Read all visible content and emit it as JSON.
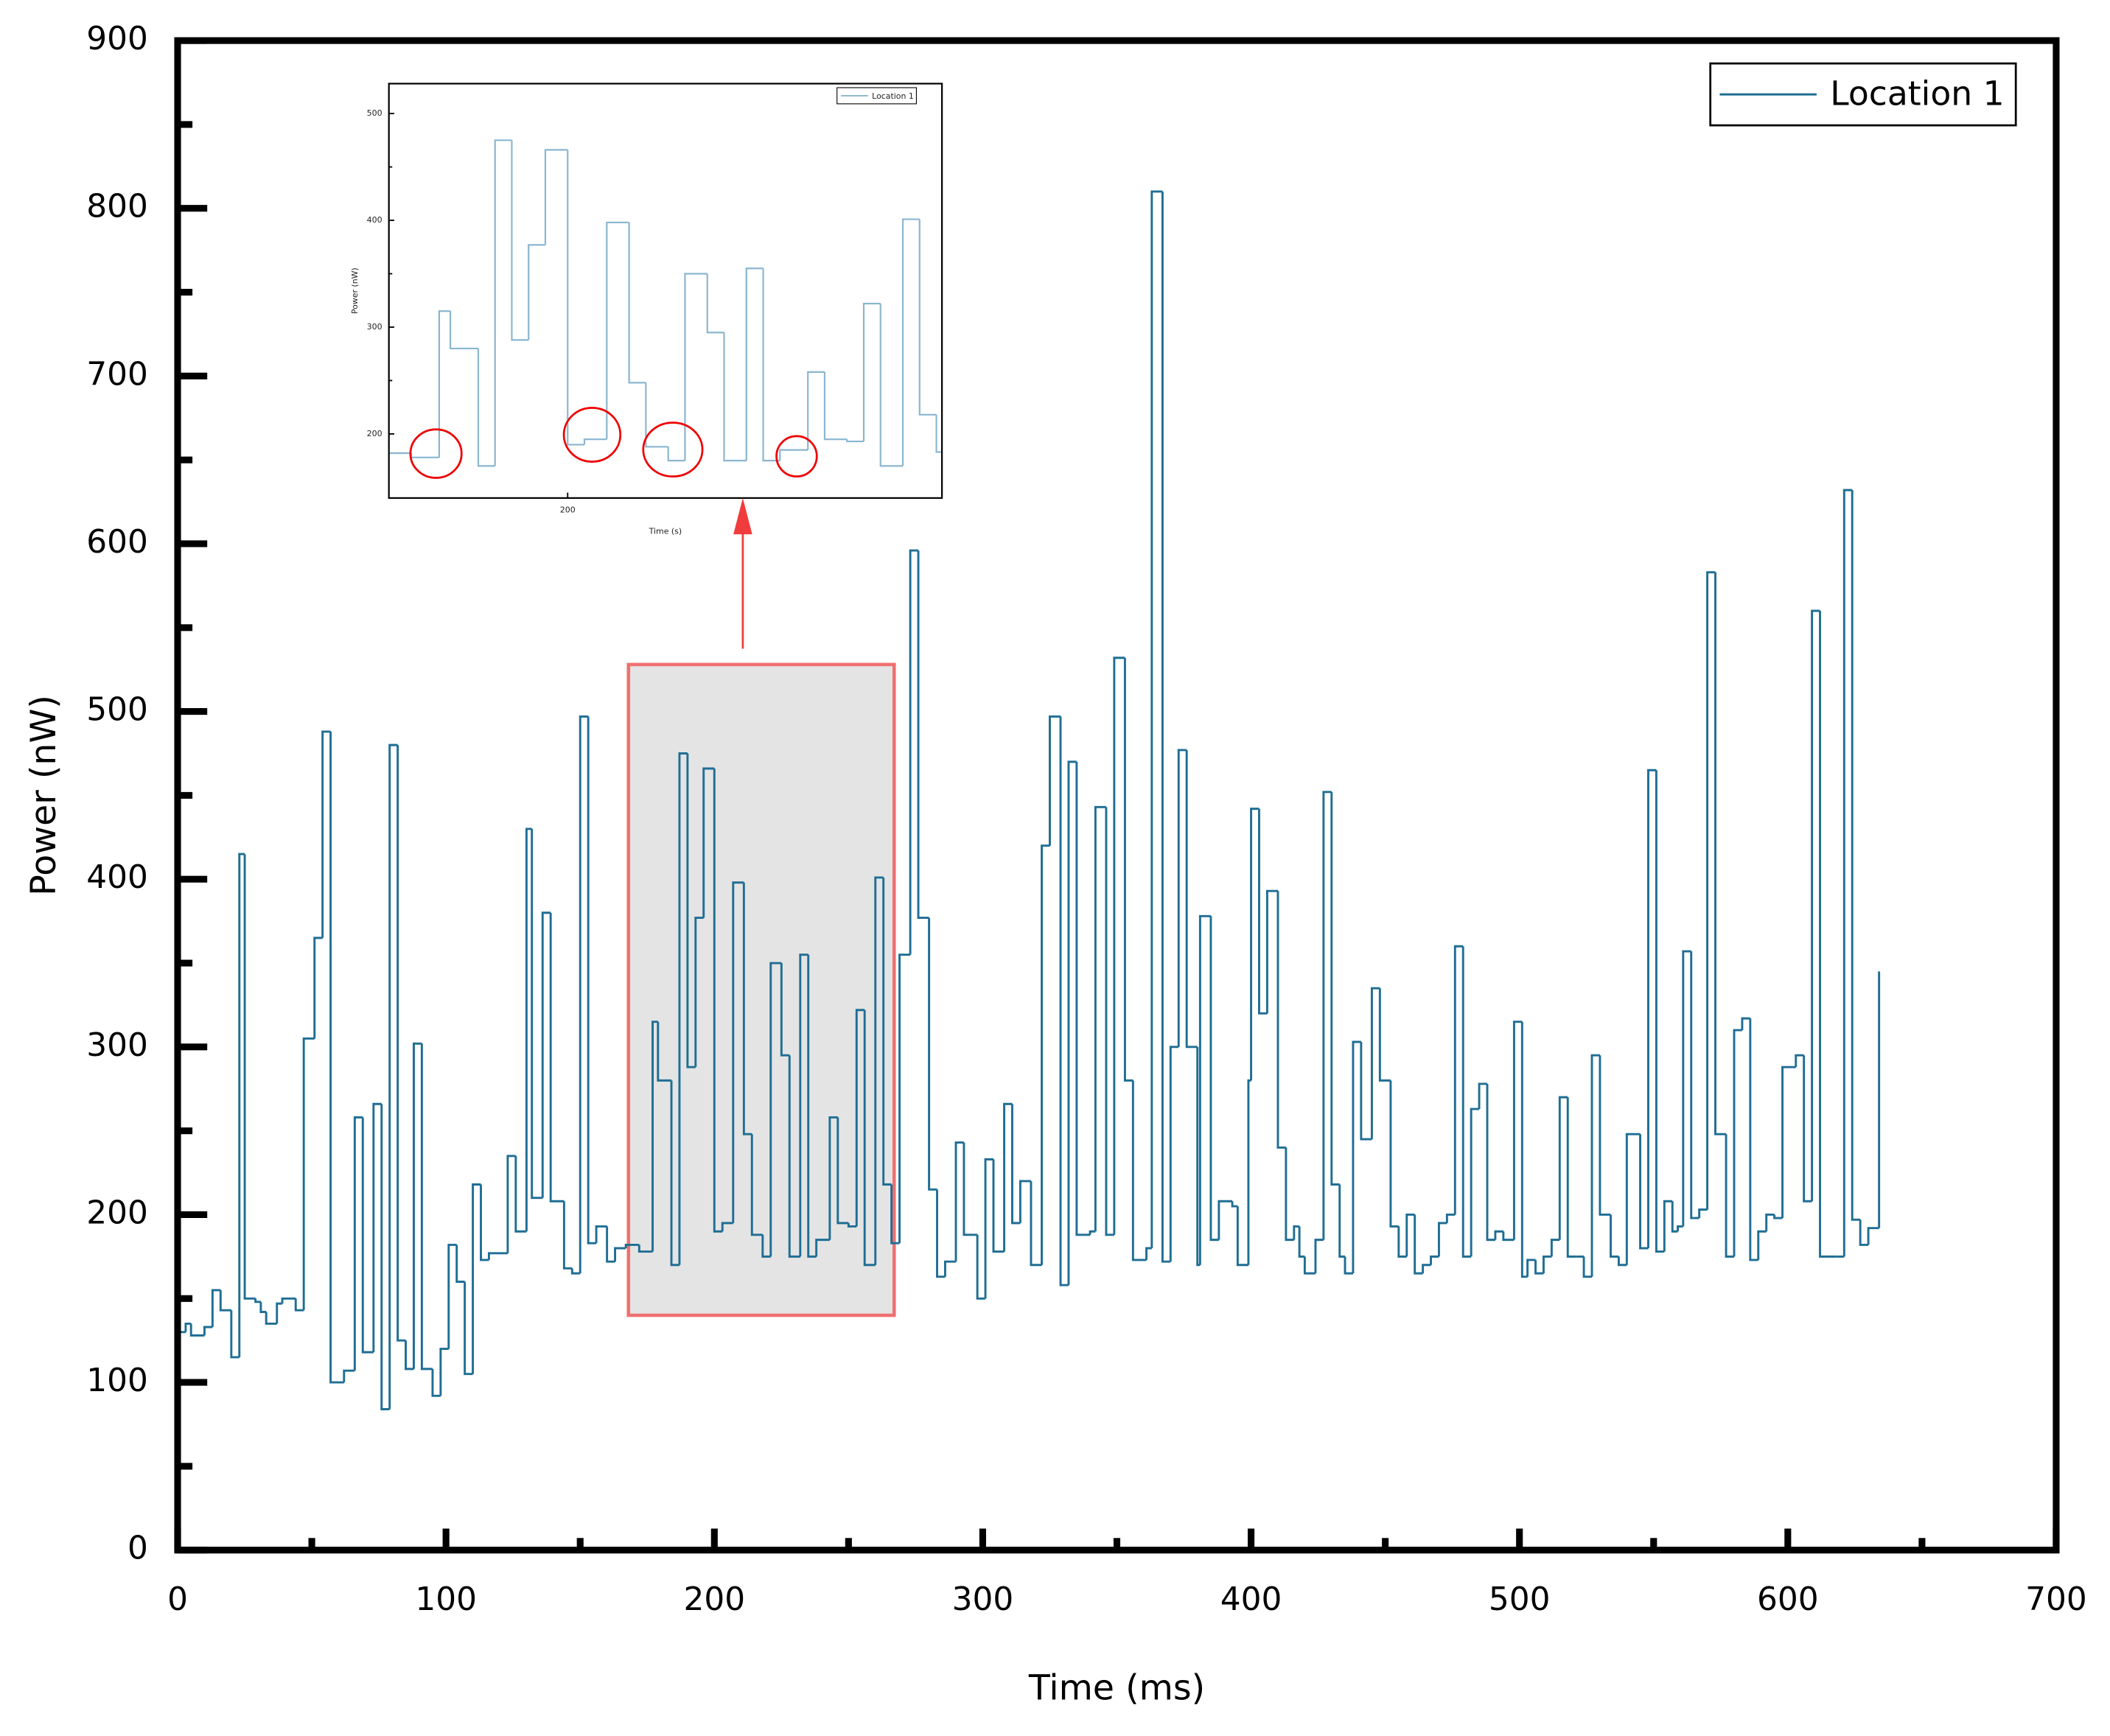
{
  "chart_data": {
    "type": "line",
    "step": "post",
    "xlabel": "Time (ms)",
    "ylabel": "Power (nW)",
    "xlim": [
      0,
      700
    ],
    "ylim": [
      0,
      900
    ],
    "xticks": [
      0,
      100,
      200,
      300,
      400,
      500,
      600,
      700
    ],
    "yticks": [
      0,
      100,
      200,
      300,
      400,
      500,
      600,
      700,
      800,
      900
    ],
    "grid": false,
    "legend": "upper right",
    "x": [
      0,
      3,
      5,
      10,
      13,
      16,
      20,
      23,
      25,
      29,
      31,
      33,
      37,
      39,
      44,
      47,
      51,
      54,
      57,
      62,
      66,
      69,
      73,
      76,
      79,
      82,
      85,
      88,
      91,
      95,
      98,
      101,
      104,
      107,
      110,
      113,
      116,
      123,
      126,
      130,
      132,
      136,
      139,
      144,
      147,
      150,
      153,
      156,
      160,
      163,
      167,
      172,
      177,
      179,
      184,
      187,
      190,
      193,
      196,
      200,
      203,
      207,
      211,
      214,
      218,
      221,
      225,
      228,
      232,
      235,
      238,
      243,
      246,
      250,
      253,
      256,
      260,
      263,
      266,
      269,
      273,
      276,
      280,
      283,
      286,
      290,
      293,
      298,
      301,
      304,
      308,
      311,
      314,
      318,
      322,
      325,
      329,
      332,
      335,
      340,
      342,
      346,
      349,
      353,
      356,
      361,
      363,
      367,
      370,
      373,
      376,
      380,
      381,
      385,
      388,
      393,
      395,
      399,
      400,
      403,
      406,
      410,
      413,
      416,
      418,
      420,
      424,
      427,
      430,
      433,
      435,
      438,
      441,
      445,
      448,
      452,
      455,
      458,
      461,
      464,
      467,
      470,
      473,
      476,
      479,
      482,
      485,
      488,
      491,
      494,
      498,
      501,
      503,
      506,
      509,
      512,
      515,
      518,
      521,
      524,
      527,
      530,
      534,
      537,
      540,
      545,
      548,
      551,
      554,
      557,
      559,
      561,
      564,
      567,
      570,
      573,
      577,
      580,
      583,
      586,
      589,
      592,
      595,
      598,
      603,
      606,
      609,
      612,
      618,
      621,
      624,
      627,
      630,
      634
    ],
    "series": [
      {
        "name": "Location 1",
        "color": "#1f6e94",
        "values": [
          130,
          135,
          128,
          133,
          155,
          143,
          115,
          415,
          150,
          148,
          142,
          135,
          147,
          150,
          143,
          305,
          365,
          488,
          100,
          107,
          258,
          118,
          266,
          84,
          480,
          125,
          108,
          302,
          108,
          92,
          120,
          182,
          160,
          105,
          218,
          173,
          177,
          235,
          190,
          430,
          210,
          380,
          208,
          168,
          165,
          497,
          183,
          193,
          172,
          180,
          182,
          178,
          315,
          280,
          170,
          475,
          288,
          377,
          466,
          190,
          195,
          398,
          248,
          188,
          175,
          350,
          295,
          175,
          355,
          175,
          185,
          258,
          195,
          193,
          322,
          170,
          401,
          218,
          183,
          355,
          596,
          377,
          215,
          163,
          172,
          243,
          188,
          150,
          233,
          178,
          266,
          195,
          220,
          170,
          420,
          497,
          158,
          470,
          188,
          190,
          443,
          188,
          532,
          280,
          173,
          180,
          810,
          172,
          300,
          477,
          300,
          170,
          378,
          185,
          208,
          205,
          170,
          280,
          442,
          320,
          393,
          240,
          185,
          193,
          175,
          165,
          185,
          452,
          218,
          175,
          165,
          303,
          245,
          335,
          280,
          193,
          175,
          200,
          165,
          170,
          175,
          195,
          200,
          360,
          175,
          263,
          278,
          185,
          190,
          185,
          315,
          163,
          173,
          165,
          175,
          185,
          270,
          175,
          175,
          163,
          295,
          200,
          175,
          170,
          248,
          180,
          465,
          178,
          208,
          190,
          193,
          357,
          198,
          203,
          583,
          248,
          175,
          310,
          317,
          173,
          190,
          200,
          198,
          288,
          295,
          208,
          560,
          175,
          175,
          632,
          197,
          182,
          192,
          345
        ]
      }
    ],
    "inset": {
      "xlabel": "Time (s)",
      "ylabel": "Power (nW)",
      "xlim": [
        168,
        267
      ],
      "ylim": [
        140,
        528
      ],
      "xticks": [
        200
      ],
      "yticks": [
        200,
        300,
        400,
        500
      ],
      "color": "#8ab6d0"
    }
  }
}
